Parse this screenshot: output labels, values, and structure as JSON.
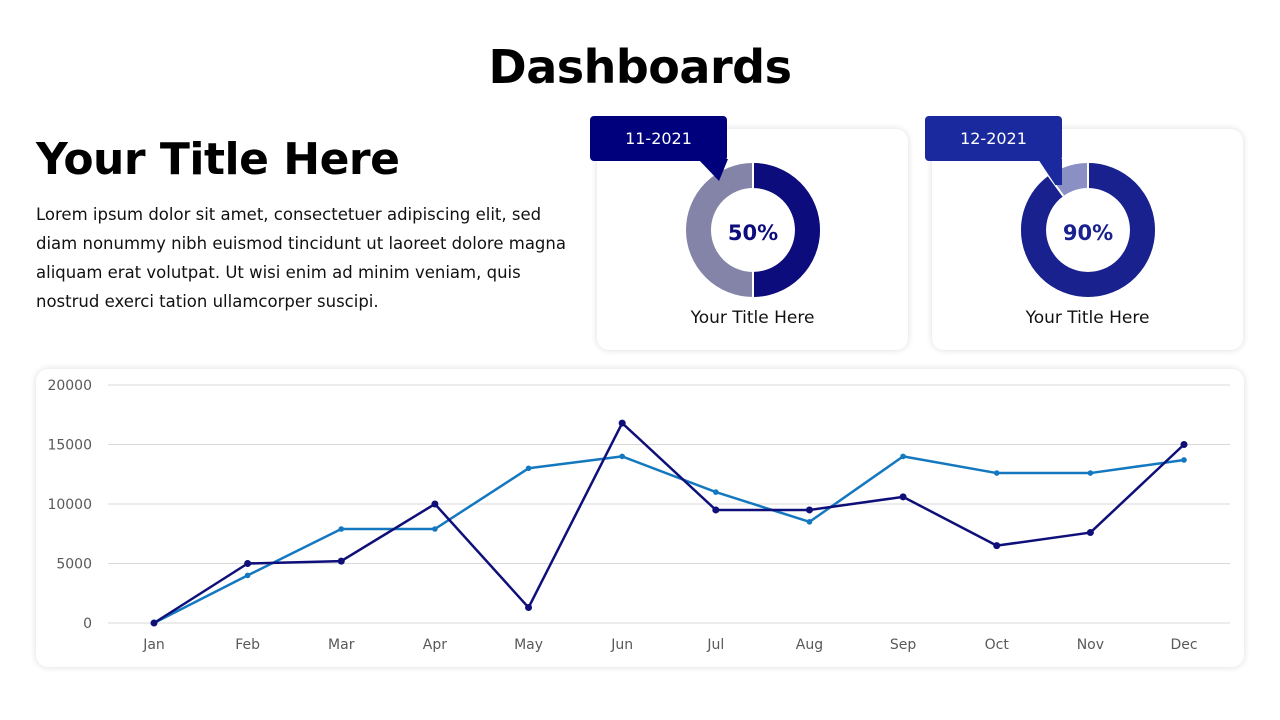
{
  "header": {
    "title": "Dashboards"
  },
  "intro": {
    "title": "Your Title Here",
    "body": "Lorem ipsum dolor sit amet, consectetuer adipiscing elit, sed diam nonummy nibh euismod tincidunt ut laoreet dolore magna aliquam erat volutpat. Ut wisi enim ad minim veniam, quis nostrud exerci tation ullamcorper suscipi."
  },
  "kpis": [
    {
      "date": "11-2021",
      "value_label": "50%",
      "value": 0.5,
      "caption": "Your Title Here",
      "callout_color": "#00007c",
      "fill_color": "#0c0c7c",
      "track_color": "#8484a8",
      "text_color": "#0c0c7c"
    },
    {
      "date": "12-2021",
      "value_label": "90%",
      "value": 0.9,
      "caption": "Your Title Here",
      "callout_color": "#1a2a9e",
      "fill_color": "#19218f",
      "track_color": "#8a8fc4",
      "text_color": "#19218f"
    }
  ],
  "chart_data": {
    "type": "line",
    "categories": [
      "Jan",
      "Feb",
      "Mar",
      "Apr",
      "May",
      "Jun",
      "Jul",
      "Aug",
      "Sep",
      "Oct",
      "Nov",
      "Dec"
    ],
    "ylim": [
      0,
      20000
    ],
    "yticks": [
      0,
      5000,
      10000,
      15000,
      20000
    ],
    "grid": true,
    "series": [
      {
        "color": "#0f0f7a",
        "values": [
          0,
          5000,
          5200,
          10000,
          1300,
          16800,
          9500,
          9500,
          10600,
          6500,
          7600,
          15000
        ]
      },
      {
        "color": "#1478c0",
        "values": [
          0,
          4000,
          7900,
          7900,
          13000,
          14000,
          11000,
          8500,
          14000,
          12600,
          12600,
          13700
        ]
      }
    ]
  }
}
